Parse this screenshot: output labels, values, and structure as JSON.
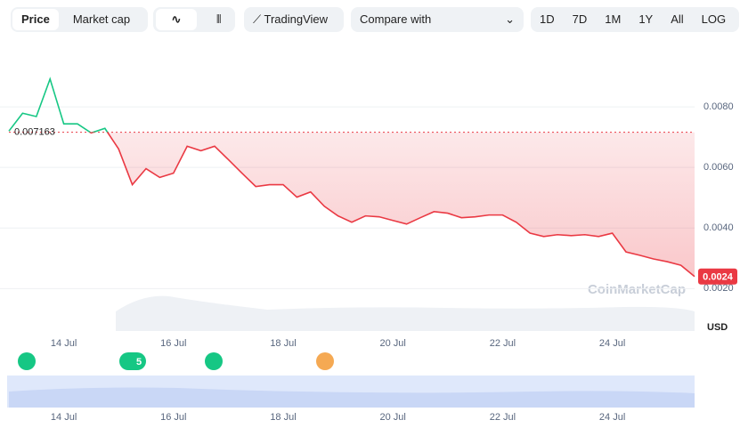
{
  "toolbar": {
    "tabs": [
      "Price",
      "Market cap"
    ],
    "tradingview": "TradingView",
    "compare": "Compare with",
    "ranges": [
      "1D",
      "7D",
      "1M",
      "1Y",
      "All",
      "LOG"
    ],
    "more": "···"
  },
  "chart_data": {
    "type": "line",
    "categories": [
      null,
      null,
      null,
      null,
      "14 Jul",
      null,
      null,
      null,
      null,
      null,
      null,
      null,
      "16 Jul",
      null,
      null,
      null,
      null,
      null,
      null,
      null,
      "18 Jul",
      null,
      null,
      null,
      null,
      null,
      null,
      null,
      "20 Jul",
      null,
      null,
      null,
      null,
      null,
      null,
      null,
      "22 Jul",
      null,
      null,
      null,
      null,
      null,
      null,
      null,
      "24 Jul",
      null,
      null,
      null,
      null,
      null,
      null
    ],
    "series": [
      {
        "name": "Price",
        "values": [
          0.0072,
          0.00779,
          0.00768,
          0.00892,
          0.00744,
          0.00744,
          0.00714,
          0.00729,
          0.00661,
          0.00543,
          0.00596,
          0.00567,
          0.00581,
          0.0067,
          0.00655,
          0.0067,
          0.00626,
          0.00581,
          0.00537,
          0.00543,
          0.00543,
          0.00502,
          0.00519,
          0.00472,
          0.0044,
          0.00419,
          0.0044,
          0.00437,
          0.00425,
          0.00413,
          0.00434,
          0.00454,
          0.00449,
          0.00434,
          0.00437,
          0.00443,
          0.00443,
          0.00419,
          0.00383,
          0.00372,
          0.00378,
          0.00375,
          0.00378,
          0.00372,
          0.00383,
          0.00321,
          0.0031,
          0.00298,
          0.00289,
          0.00277,
          0.0024
        ]
      }
    ],
    "up_color": "#16c784",
    "down_color": "#ea3943",
    "baseline": 0.007163,
    "ylim": [
      0.0006,
      0.01
    ],
    "yticks": [
      {
        "value": 0.002,
        "label": "0.0020"
      },
      {
        "value": 0.004,
        "label": "0.0040"
      },
      {
        "value": 0.006,
        "label": "0.0060"
      },
      {
        "value": 0.008,
        "label": "0.0080"
      }
    ],
    "grid": true,
    "y_unit": "USD",
    "watermark": "CoinMarketCap",
    "event_badge": "5"
  }
}
